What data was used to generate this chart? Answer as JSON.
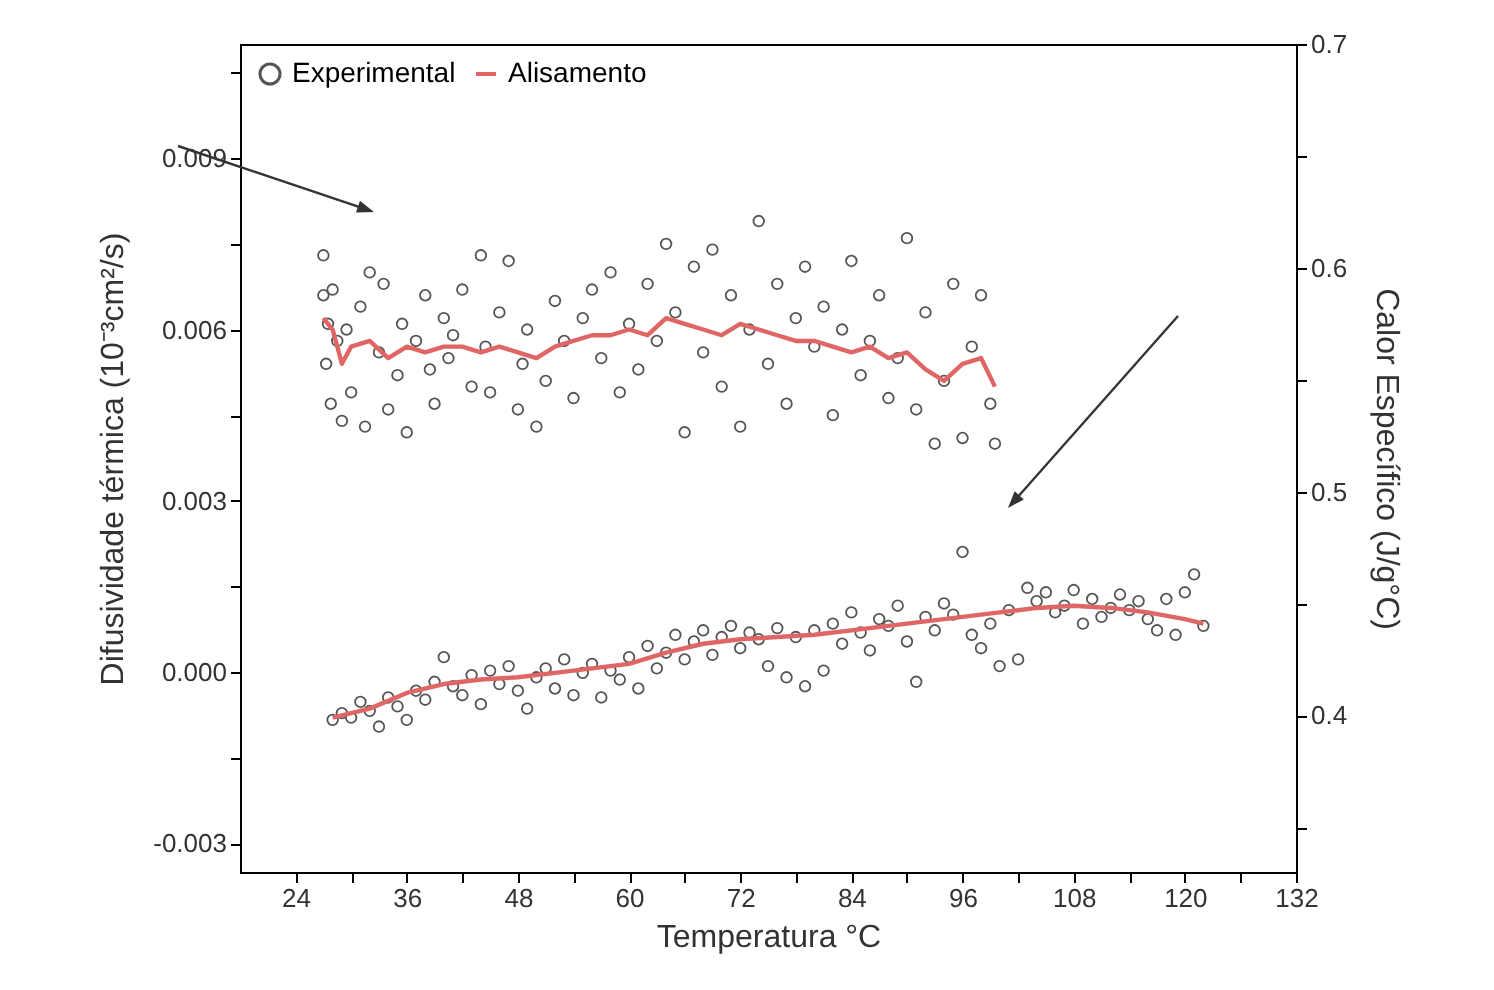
{
  "chart_data": {
    "type": "scatter",
    "xlabel": "Temperatura °C",
    "ylabel": "Difusividade térmica (10⁻³cm²/s)",
    "y2label": "Calor Específico (J/g°C)",
    "xlim": [
      18,
      132
    ],
    "xticks": [
      24,
      {
        "value": 30,
        "label": null
      },
      36,
      {
        "value": 42,
        "label": null
      },
      48,
      {
        "value": 54,
        "label": null
      },
      60,
      {
        "value": 66,
        "label": null
      },
      72,
      {
        "value": 78,
        "label": null
      },
      84,
      {
        "value": 90,
        "label": null
      },
      96,
      {
        "value": 102,
        "label": null
      },
      108,
      {
        "value": 114,
        "label": null
      },
      120,
      {
        "value": 126,
        "label": null
      },
      132
    ],
    "ylim": [
      -0.0035,
      0.011
    ],
    "yticks": [
      -0.003,
      {
        "value": -0.0015,
        "label": null
      },
      {
        "value": 0,
        "label": "0.000"
      },
      {
        "value": 0.0015,
        "label": null
      },
      0.003,
      {
        "value": 0.0045,
        "label": null
      },
      0.006,
      {
        "value": 0.0075,
        "label": null
      },
      0.009,
      {
        "value": 0.0105,
        "label": null
      }
    ],
    "y2lim": [
      0.33,
      0.7
    ],
    "y2ticks": [
      {
        "value": 0.35,
        "label": null
      },
      0.4,
      {
        "value": 0.45,
        "label": null
      },
      0.5,
      {
        "value": 0.55,
        "label": null
      },
      0.6,
      {
        "value": 0.65,
        "label": null
      },
      0.7
    ],
    "grid": false,
    "legend": "top left",
    "line_style": "solid",
    "series": [
      {
        "name": "Experimental",
        "marker": "circle",
        "color": "#555555",
        "x": [
          27,
          27,
          27.3,
          27.5,
          27.8,
          28,
          28.5,
          29,
          29.5,
          30,
          31,
          31.5,
          32,
          33,
          33.5,
          34,
          35,
          35.5,
          36,
          37,
          38,
          38.5,
          39,
          40,
          40.5,
          41,
          42,
          43,
          44,
          44.5,
          45,
          46,
          47,
          48,
          48.5,
          49,
          50,
          51,
          52,
          53,
          54,
          55,
          56,
          57,
          58,
          59,
          60,
          61,
          62,
          63,
          64,
          65,
          66,
          67,
          68,
          69,
          70,
          71,
          72,
          73,
          74,
          75,
          76,
          77,
          78,
          79,
          80,
          81,
          82,
          83,
          84,
          85,
          86,
          87,
          88,
          89,
          90,
          91,
          92,
          93,
          94,
          95,
          96,
          97,
          98,
          99,
          99.5
        ],
        "values": [
          0.0073,
          0.0066,
          0.0054,
          0.0061,
          0.0047,
          0.0067,
          0.0058,
          0.0044,
          0.006,
          0.0049,
          0.0064,
          0.0043,
          0.007,
          0.0056,
          0.0068,
          0.0046,
          0.0052,
          0.0061,
          0.0042,
          0.0058,
          0.0066,
          0.0053,
          0.0047,
          0.0062,
          0.0055,
          0.0059,
          0.0067,
          0.005,
          0.0073,
          0.0057,
          0.0049,
          0.0063,
          0.0072,
          0.0046,
          0.0054,
          0.006,
          0.0043,
          0.0051,
          0.0065,
          0.0058,
          0.0048,
          0.0062,
          0.0067,
          0.0055,
          0.007,
          0.0049,
          0.0061,
          0.0053,
          0.0068,
          0.0058,
          0.0075,
          0.0063,
          0.0042,
          0.0071,
          0.0056,
          0.0074,
          0.005,
          0.0066,
          0.0043,
          0.006,
          0.0079,
          0.0054,
          0.0068,
          0.0047,
          0.0062,
          0.0071,
          0.0057,
          0.0064,
          0.0045,
          0.006,
          0.0072,
          0.0052,
          0.0058,
          0.0066,
          0.0048,
          0.0055,
          0.0076,
          0.0046,
          0.0063,
          0.004,
          0.0051,
          0.0068,
          0.0041,
          0.0057,
          0.0066,
          0.0047,
          0.004
        ]
      },
      {
        "name": "Alisamento",
        "type": "line",
        "color": "#e06666",
        "x": [
          27,
          28,
          29,
          30,
          32,
          34,
          36,
          38,
          40,
          42,
          44,
          46,
          48,
          50,
          52,
          54,
          56,
          58,
          60,
          62,
          64,
          66,
          68,
          70,
          72,
          74,
          76,
          78,
          80,
          82,
          84,
          86,
          88,
          90,
          92,
          94,
          96,
          98,
          99.5
        ],
        "values": [
          0.0062,
          0.006,
          0.0054,
          0.0057,
          0.0058,
          0.0055,
          0.0057,
          0.0056,
          0.0057,
          0.0057,
          0.0056,
          0.0057,
          0.0056,
          0.0055,
          0.0057,
          0.0058,
          0.0059,
          0.0059,
          0.006,
          0.0059,
          0.0062,
          0.0061,
          0.006,
          0.0059,
          0.0061,
          0.006,
          0.0059,
          0.0058,
          0.0058,
          0.0057,
          0.0056,
          0.0057,
          0.0055,
          0.0056,
          0.0053,
          0.0051,
          0.0054,
          0.0055,
          0.005
        ]
      },
      {
        "marker": "circle",
        "axis": "y2",
        "color": "#555555",
        "x": [
          28,
          29,
          30,
          31,
          32,
          33,
          34,
          35,
          36,
          37,
          38,
          39,
          40,
          41,
          42,
          43,
          44,
          45,
          46,
          47,
          48,
          49,
          50,
          51,
          52,
          53,
          54,
          55,
          56,
          57,
          58,
          59,
          60,
          61,
          62,
          63,
          64,
          65,
          66,
          67,
          68,
          69,
          70,
          71,
          72,
          73,
          74,
          75,
          76,
          77,
          78,
          79,
          80,
          81,
          82,
          83,
          84,
          85,
          86,
          87,
          88,
          89,
          90,
          91,
          92,
          93,
          94,
          95,
          96,
          97,
          98,
          99,
          100,
          101,
          102,
          103,
          104,
          105,
          106,
          107,
          108,
          109,
          110,
          111,
          112,
          113,
          114,
          115,
          116,
          117,
          118,
          119,
          120,
          121,
          122
        ],
        "values": [
          0.398,
          0.401,
          0.399,
          0.406,
          0.402,
          0.395,
          0.408,
          0.404,
          0.398,
          0.411,
          0.407,
          0.415,
          0.426,
          0.413,
          0.409,
          0.418,
          0.405,
          0.42,
          0.414,
          0.422,
          0.411,
          0.403,
          0.417,
          0.421,
          0.412,
          0.425,
          0.409,
          0.419,
          0.423,
          0.408,
          0.42,
          0.416,
          0.426,
          0.412,
          0.431,
          0.421,
          0.428,
          0.436,
          0.425,
          0.433,
          0.438,
          0.427,
          0.435,
          0.44,
          0.43,
          0.437,
          0.434,
          0.422,
          0.439,
          0.417,
          0.435,
          0.413,
          0.438,
          0.42,
          0.441,
          0.432,
          0.446,
          0.437,
          0.429,
          0.443,
          0.44,
          0.449,
          0.433,
          0.415,
          0.444,
          0.438,
          0.45,
          0.445,
          0.473,
          0.436,
          0.43,
          0.441,
          0.422,
          0.447,
          0.425,
          0.457,
          0.451,
          0.455,
          0.446,
          0.449,
          0.456,
          0.441,
          0.452,
          0.444,
          0.448,
          0.454,
          0.447,
          0.451,
          0.443,
          0.438,
          0.452,
          0.436,
          0.455,
          0.463,
          0.44
        ]
      },
      {
        "type": "line",
        "axis": "y2",
        "color": "#e06666",
        "x": [
          28,
          32,
          36,
          40,
          44,
          48,
          52,
          56,
          60,
          64,
          68,
          72,
          76,
          80,
          84,
          88,
          92,
          96,
          100,
          104,
          108,
          112,
          116,
          120,
          122
        ],
        "values": [
          0.399,
          0.403,
          0.41,
          0.414,
          0.416,
          0.417,
          0.419,
          0.421,
          0.423,
          0.428,
          0.432,
          0.434,
          0.435,
          0.436,
          0.438,
          0.44,
          0.442,
          0.444,
          0.446,
          0.448,
          0.449,
          0.448,
          0.446,
          0.443,
          0.441
        ]
      }
    ]
  }
}
